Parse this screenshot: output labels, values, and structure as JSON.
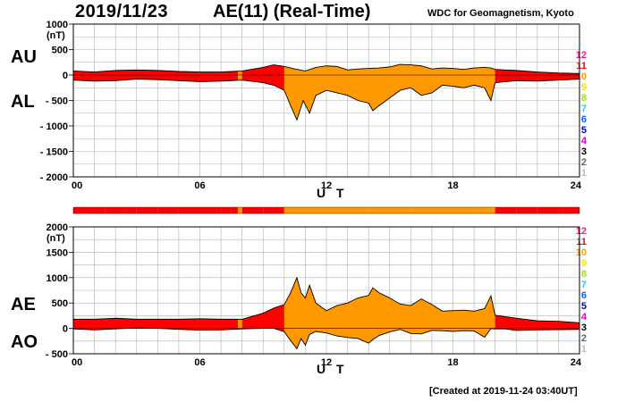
{
  "header": {
    "date": "2019/11/23",
    "title": "AE(11) (Real-Time)",
    "source": "WDC for Geomagnetism, Kyoto"
  },
  "footer": {
    "created": "[Created at 2019-11-24 03:40UT]"
  },
  "unit_label": "(nT)",
  "x_title": "U T",
  "x_ticks": [
    "00",
    "06",
    "12",
    "18",
    "24"
  ],
  "legend": {
    "labels": [
      "12",
      "11",
      "10",
      "9",
      "8",
      "7",
      "6",
      "5",
      "4",
      "3",
      "2",
      "1"
    ],
    "colors": [
      "#ff1a8c",
      "#ff0000",
      "#ff9900",
      "#e6e600",
      "#99e600",
      "#33cccc",
      "#0066ff",
      "#0000cc",
      "#cc00cc",
      "#000000",
      "#666666",
      "#bbbbbb"
    ]
  },
  "station_count": {
    "hours": [
      0,
      1.5,
      2.5,
      3,
      4,
      5,
      6,
      7,
      7.5,
      7.8,
      8,
      9,
      9.9,
      10,
      12,
      14,
      16,
      18,
      19,
      19.9,
      20,
      21,
      22,
      23,
      24
    ],
    "counts": [
      11,
      11,
      11,
      11,
      11,
      11,
      11,
      11,
      11,
      10,
      11,
      11,
      11,
      10,
      10,
      10,
      10,
      10,
      10,
      10,
      11,
      11,
      11,
      11,
      11
    ]
  },
  "chart_data": [
    {
      "type": "area",
      "title": "AU / AL",
      "labels_top": "AU",
      "labels_bottom": "AL",
      "xlabel": "U T",
      "ylabel": "(nT)",
      "xlim": [
        0,
        24
      ],
      "ylim": [
        -2000,
        1000
      ],
      "yticks": [
        1000,
        500,
        0,
        -500,
        -1000,
        -1500,
        -2000
      ],
      "ytick_labels": [
        "1000",
        "500",
        "0",
        "- 500",
        "- 1000",
        "- 1500",
        "- 2000"
      ],
      "series": [
        {
          "name": "AU",
          "x": [
            0,
            1,
            2,
            3,
            4,
            5,
            6,
            7,
            8,
            9,
            9.5,
            10,
            10.5,
            11,
            11.5,
            12,
            12.5,
            13,
            13.5,
            14,
            14.5,
            15,
            15.5,
            16,
            16.5,
            17,
            17.5,
            18,
            18.5,
            19,
            19.5,
            19.8,
            20,
            20.5,
            21,
            22,
            23,
            24
          ],
          "values": [
            80,
            60,
            90,
            100,
            90,
            70,
            60,
            60,
            80,
            150,
            200,
            170,
            120,
            80,
            150,
            180,
            170,
            100,
            120,
            130,
            140,
            160,
            210,
            200,
            180,
            120,
            140,
            130,
            110,
            140,
            150,
            140,
            110,
            100,
            90,
            60,
            40,
            30
          ]
        },
        {
          "name": "AL",
          "x": [
            0,
            1,
            2,
            3,
            4,
            5,
            6,
            7,
            8,
            9,
            9.5,
            10,
            10.3,
            10.6,
            10.9,
            11.2,
            11.5,
            12,
            12.5,
            13,
            13.5,
            14,
            14.2,
            14.5,
            15,
            15.5,
            16,
            16.5,
            17,
            17.5,
            18,
            18.5,
            19,
            19.5,
            19.8,
            20,
            20.5,
            21,
            22,
            23,
            24
          ],
          "values": [
            -100,
            -120,
            -110,
            -80,
            -90,
            -110,
            -130,
            -120,
            -100,
            -150,
            -200,
            -300,
            -600,
            -880,
            -500,
            -750,
            -400,
            -300,
            -350,
            -400,
            -500,
            -550,
            -700,
            -600,
            -450,
            -300,
            -250,
            -400,
            -350,
            -200,
            -220,
            -250,
            -200,
            -250,
            -500,
            -150,
            -130,
            -110,
            -120,
            -100,
            -80
          ]
        }
      ]
    },
    {
      "type": "area",
      "title": "AE / AO",
      "labels_top": "AE",
      "labels_bottom": "AO",
      "xlabel": "U T",
      "ylabel": "(nT)",
      "xlim": [
        0,
        24
      ],
      "ylim": [
        -500,
        2000
      ],
      "yticks": [
        2000,
        1500,
        1000,
        500,
        0,
        -500
      ],
      "ytick_labels": [
        "2000",
        "1500",
        "1000",
        "500",
        "0",
        "- 500"
      ],
      "series": [
        {
          "name": "AE",
          "x": [
            0,
            1,
            2,
            3,
            4,
            5,
            6,
            7,
            8,
            9,
            9.5,
            10,
            10.3,
            10.6,
            10.8,
            11,
            11.2,
            11.5,
            12,
            12.5,
            13,
            13.5,
            14,
            14.2,
            14.5,
            15,
            15.5,
            16,
            16.5,
            17,
            17.5,
            18,
            18.5,
            19,
            19.5,
            19.8,
            20,
            20.5,
            21,
            22,
            23,
            24
          ],
          "values": [
            180,
            180,
            200,
            180,
            180,
            180,
            190,
            180,
            180,
            300,
            400,
            470,
            700,
            1000,
            700,
            600,
            850,
            500,
            350,
            450,
            500,
            600,
            650,
            800,
            700,
            600,
            480,
            450,
            580,
            470,
            340,
            350,
            360,
            340,
            390,
            640,
            260,
            230,
            200,
            150,
            140,
            110
          ]
        },
        {
          "name": "AO",
          "x": [
            0,
            1,
            2,
            3,
            4,
            5,
            6,
            7,
            8,
            9,
            9.5,
            10,
            10.3,
            10.6,
            10.8,
            11,
            11.2,
            11.5,
            12,
            12.5,
            13,
            13.5,
            14,
            14.2,
            14.5,
            15,
            15.5,
            16,
            16.5,
            17,
            17.5,
            18,
            18.5,
            19,
            19.5,
            19.8,
            20,
            20.5,
            21,
            22,
            23,
            24
          ],
          "values": [
            -10,
            -30,
            -10,
            10,
            0,
            -20,
            -35,
            -30,
            -10,
            0,
            0,
            -65,
            -240,
            -400,
            -200,
            -330,
            -120,
            -60,
            -90,
            -150,
            -180,
            -200,
            -290,
            -220,
            -140,
            -70,
            -20,
            -100,
            -110,
            -40,
            -45,
            -60,
            -45,
            -50,
            -175,
            -5,
            -10,
            -10,
            -40,
            -30,
            -25,
            -20
          ]
        }
      ]
    }
  ]
}
